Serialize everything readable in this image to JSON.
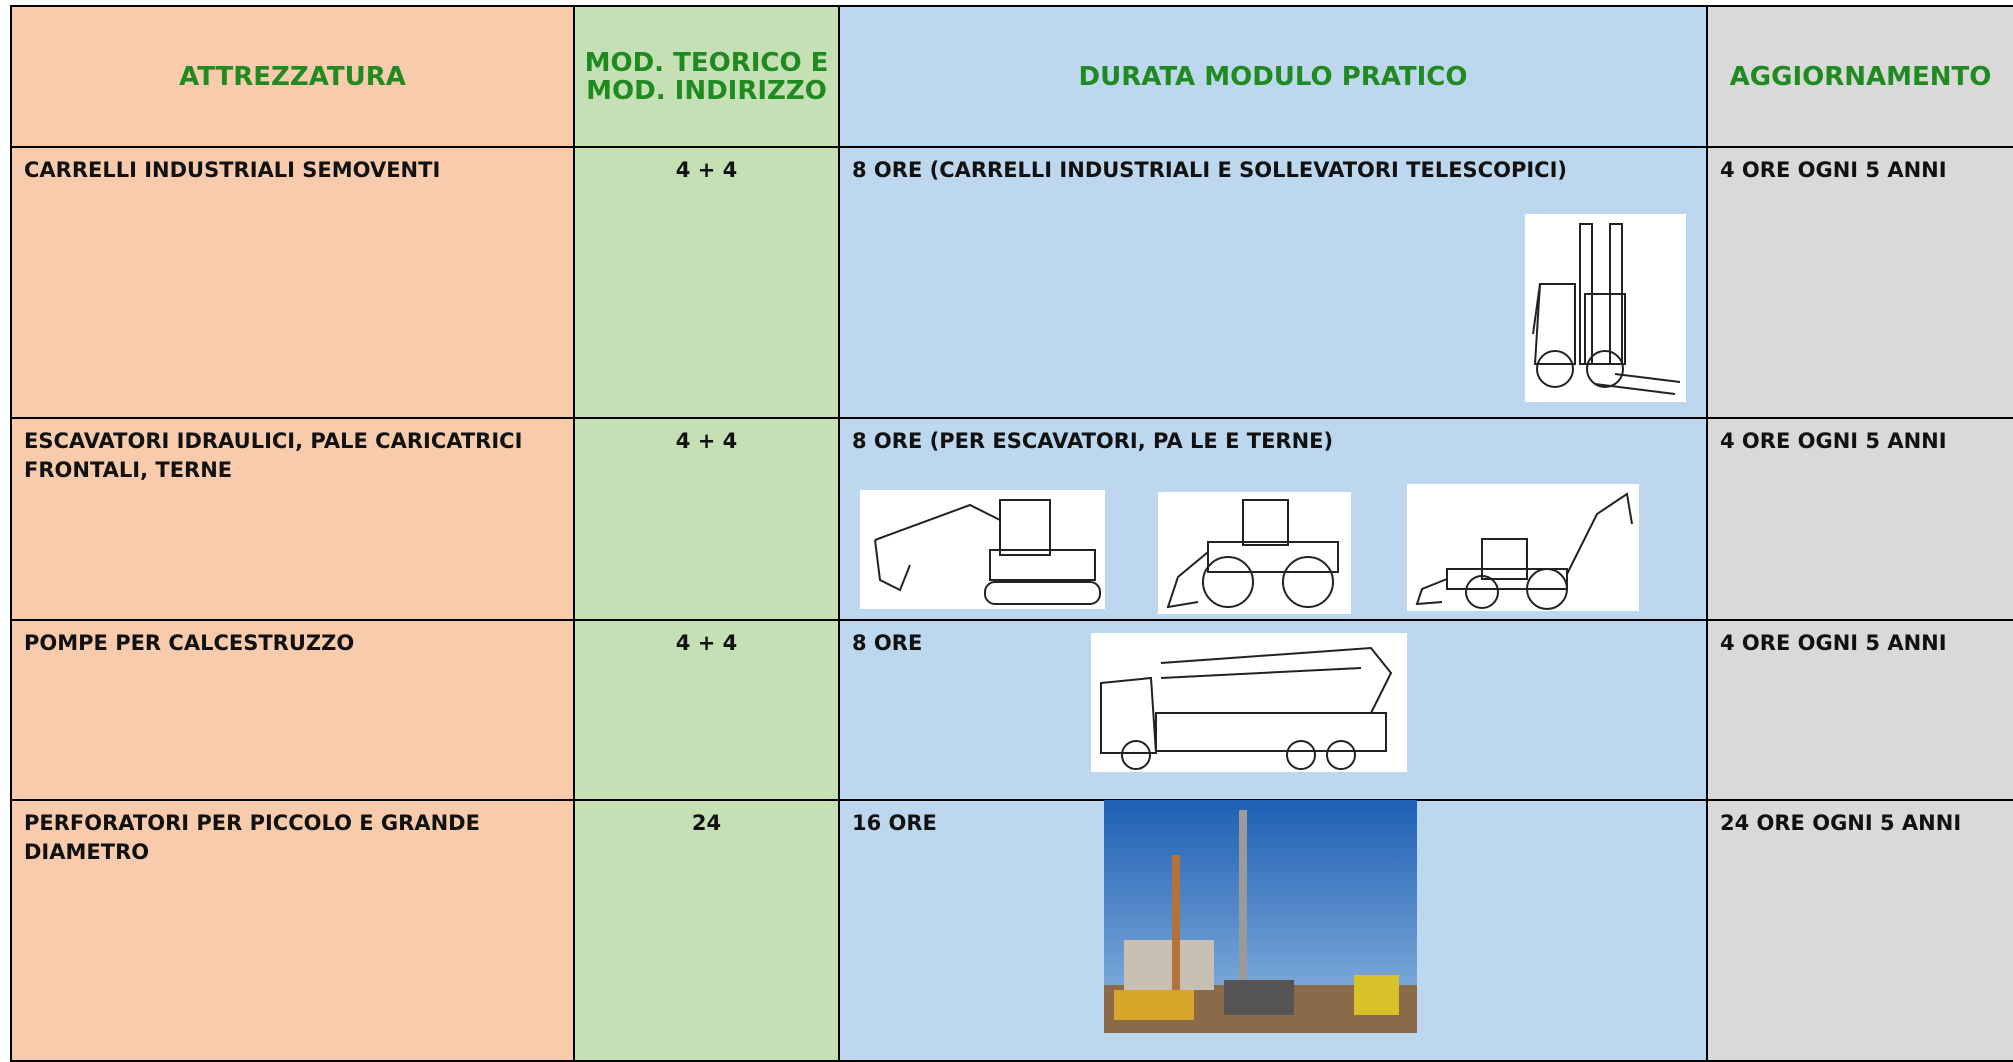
{
  "table": {
    "headers": [
      "ATTREZZATURA",
      "MOD. TEORICO E MOD. INDIRIZZO",
      "DURATA MODULO PRATICO",
      "AGGIORNAMENTO"
    ],
    "rows": [
      [
        "CARRELLI INDUSTRIALI SEMOVENTI",
        "4 + 4",
        "8 ORE (CARRELLI INDUSTRIALI E SOLLEVATORI TELESCOPICI)",
        "4 ORE OGNI 5 ANNI"
      ],
      [
        "ESCAVATORI IDRAULICI, PALE CARICATRICI FRONTALI, TERNE",
        "4 + 4",
        "8 ORE (PER ESCAVATORI, PA LE E TERNE)",
        "4 ORE OGNI 5 ANNI"
      ],
      [
        "POMPE PER CALCESTRUZZO",
        "4 + 4",
        "8 ORE",
        "4 ORE OGNI 5 ANNI"
      ],
      [
        "PERFORATORI PER PICCOLO E GRANDE DIAMETRO",
        "24",
        "16 ORE",
        "24 ORE OGNI 5 ANNI"
      ]
    ]
  }
}
